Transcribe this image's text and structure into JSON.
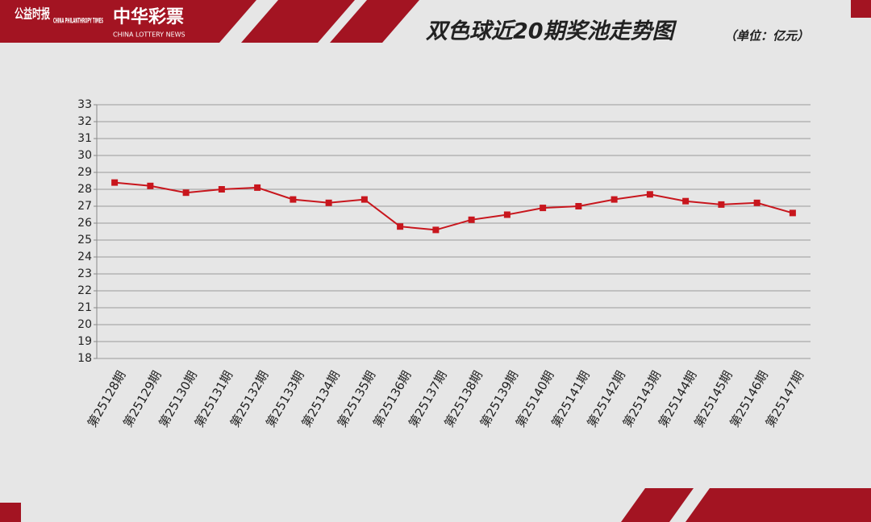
{
  "header": {
    "brand": "公益时报",
    "brand_en": "CHINA PHILANTHROPY TIMES",
    "partner": "中华彩票",
    "partner_en": "CHINA LOTTERY NEWS"
  },
  "chart_data": {
    "type": "line",
    "title": "双色球近20期奖池走势图",
    "subtitle": "（单位：亿元）",
    "categories": [
      "第25128期",
      "第25129期",
      "第25130期",
      "第25131期",
      "第25132期",
      "第25133期",
      "第25134期",
      "第25135期",
      "第25136期",
      "第25137期",
      "第25138期",
      "第25139期",
      "第25140期",
      "第25141期",
      "第25142期",
      "第25143期",
      "第25144期",
      "第25145期",
      "第25146期",
      "第25147期"
    ],
    "values": [
      28.4,
      28.2,
      27.8,
      28.0,
      28.1,
      27.4,
      27.2,
      27.4,
      25.8,
      25.6,
      26.2,
      26.5,
      26.9,
      27.0,
      27.4,
      27.7,
      27.3,
      27.1,
      27.2,
      26.6
    ],
    "color": "#c8161d",
    "ylim": [
      18,
      33
    ],
    "yticks": [
      18,
      19,
      20,
      21,
      22,
      23,
      24,
      25,
      26,
      27,
      28,
      29,
      30,
      31,
      32,
      33
    ],
    "grid": true
  }
}
